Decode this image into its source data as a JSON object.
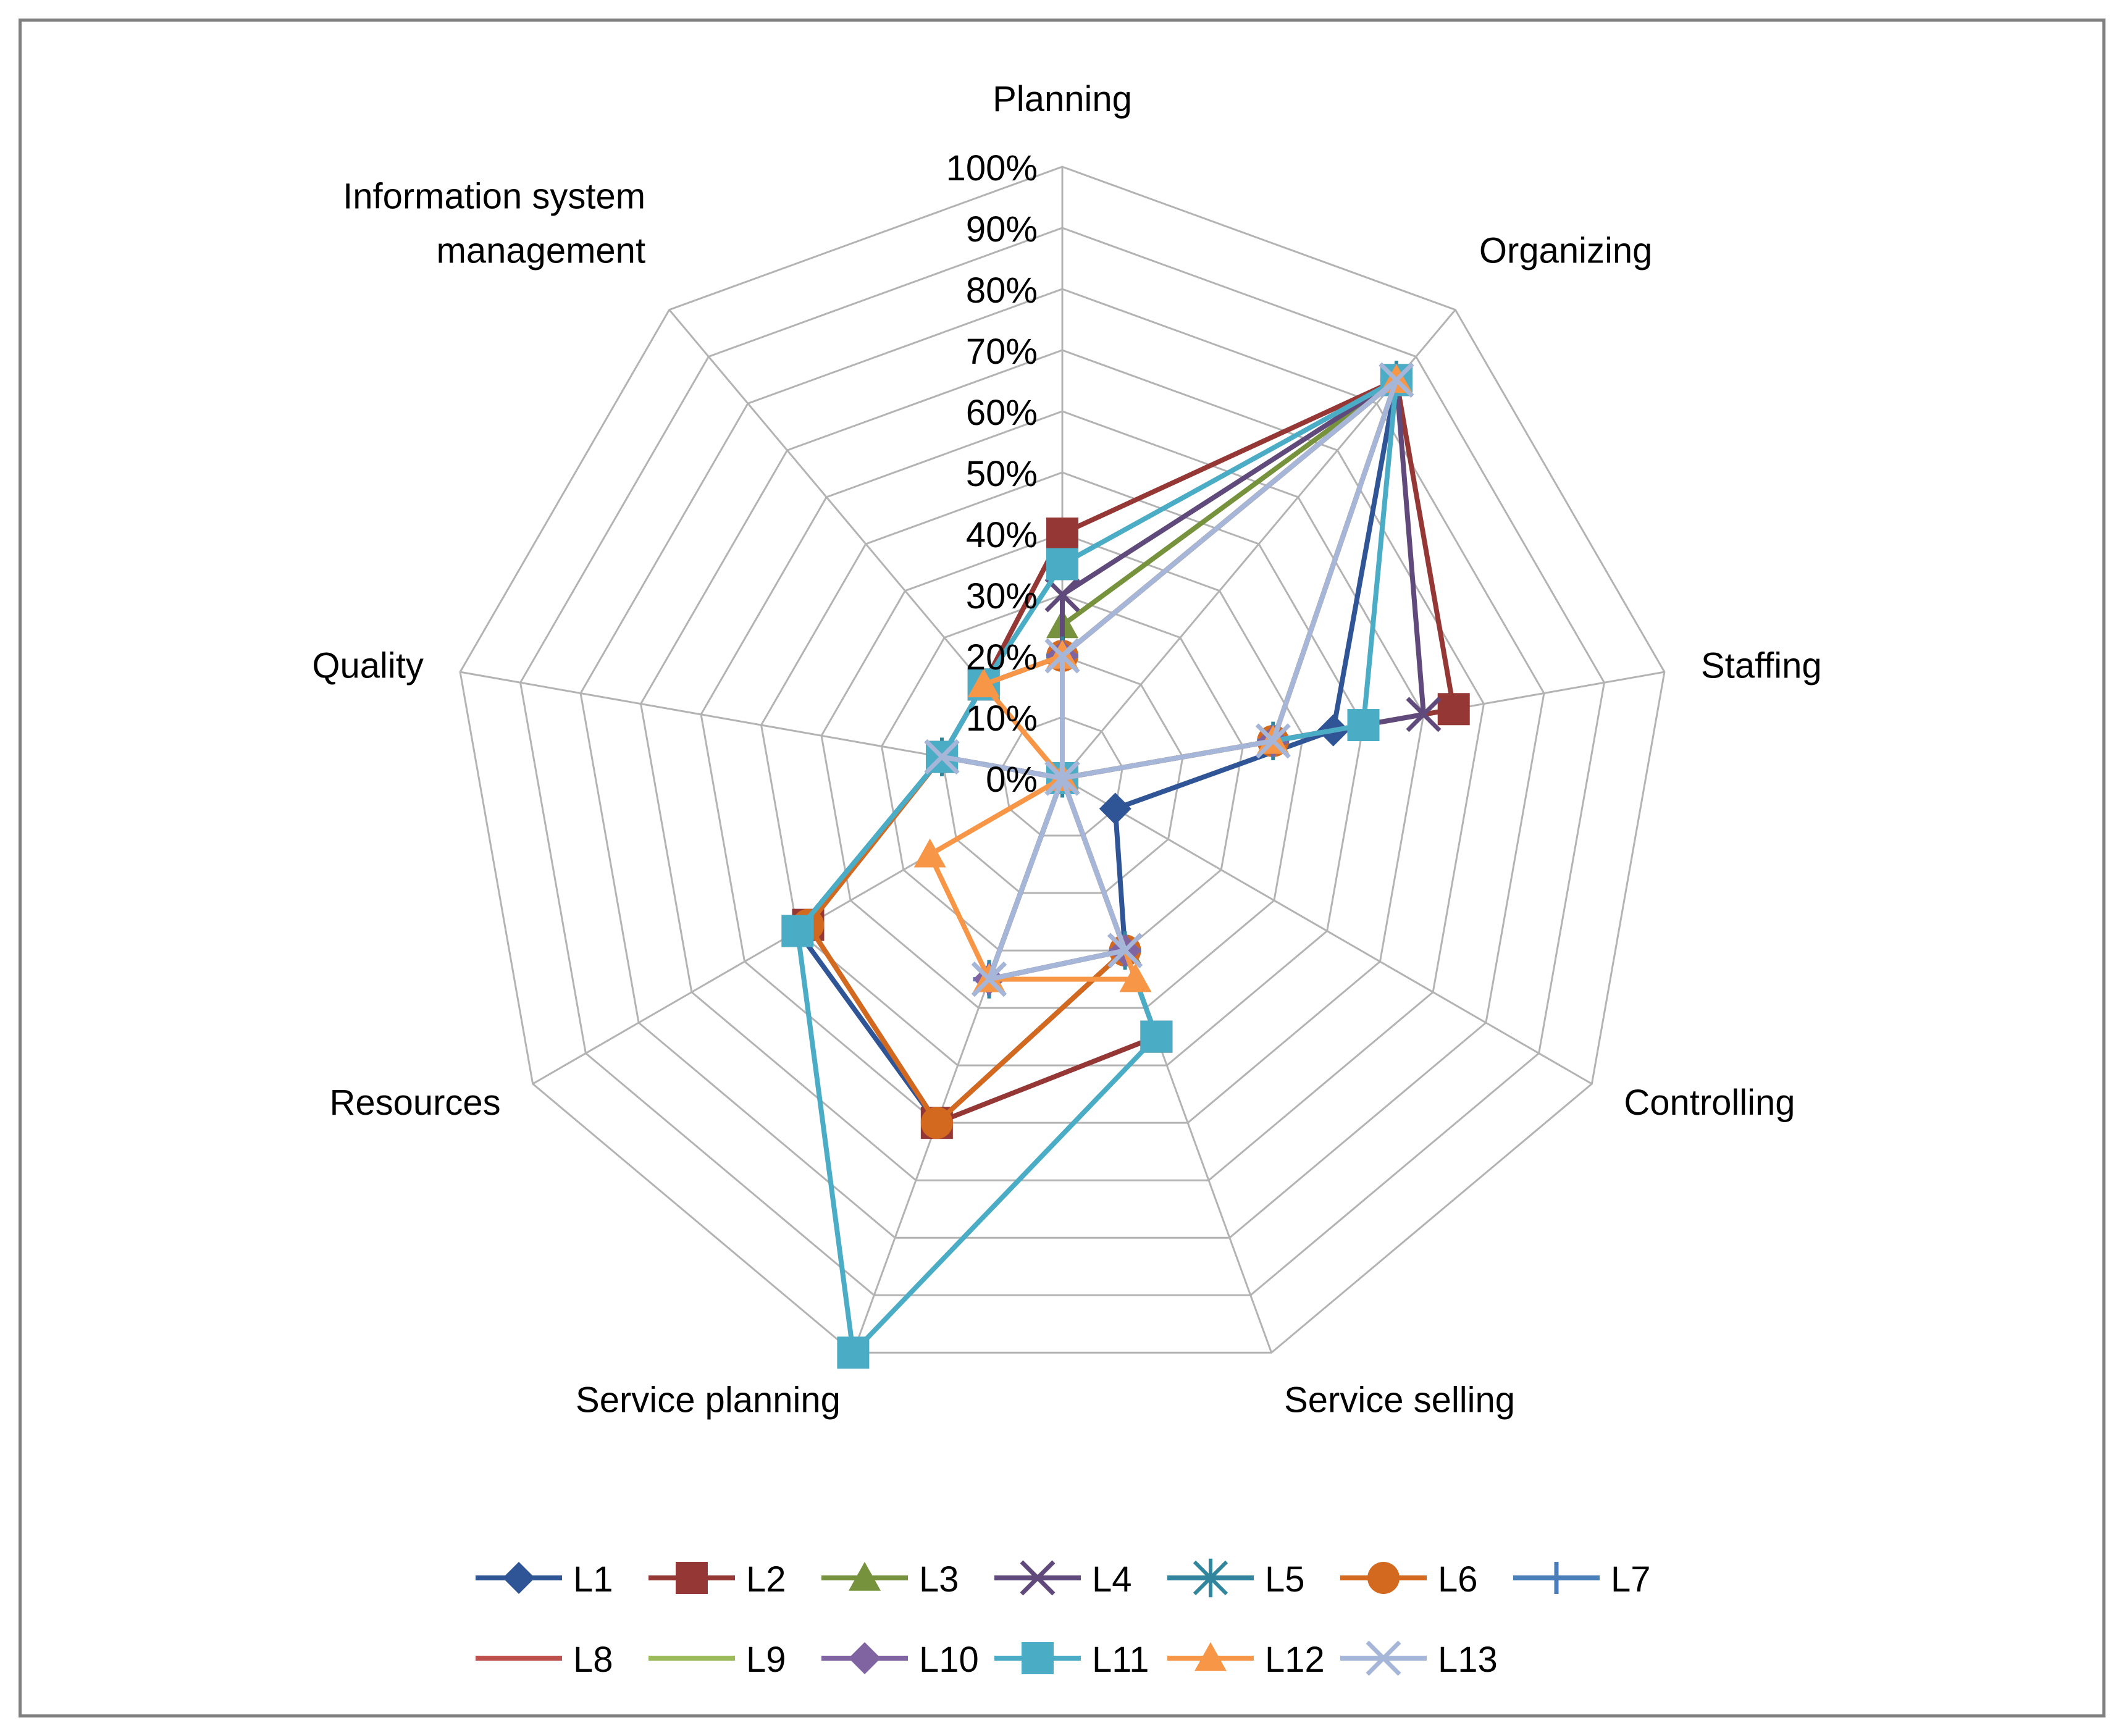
{
  "chart_data": {
    "type": "radar",
    "title": "",
    "axes": [
      "Planning",
      "Organizing",
      "Staffing",
      "Controlling",
      "Service selling",
      "Service planning",
      "Resources",
      "Quality",
      "Information system management"
    ],
    "axis_label_lines": [
      [
        "Planning"
      ],
      [
        "Organizing"
      ],
      [
        "Staffing"
      ],
      [
        "Controlling"
      ],
      [
        "Service selling"
      ],
      [
        "Service planning"
      ],
      [
        "Resources"
      ],
      [
        "Quality"
      ],
      [
        "Information system",
        "management"
      ]
    ],
    "range": [
      0,
      1
    ],
    "tick_labels": [
      "0%",
      "10%",
      "20%",
      "30%",
      "40%",
      "50%",
      "60%",
      "70%",
      "80%",
      "90%",
      "100%"
    ],
    "grid": true,
    "legend_position": "bottom",
    "series": [
      {
        "name": "L1",
        "color": "#2f5597",
        "marker": "diamond",
        "values": [
          0.2,
          0.85,
          0.45,
          0.1,
          0.3,
          0.6,
          0.5,
          0.2,
          0.2
        ]
      },
      {
        "name": "L2",
        "color": "#953735",
        "marker": "square",
        "values": [
          0.4,
          0.85,
          0.65,
          0.0,
          0.45,
          0.6,
          0.48,
          0.2,
          0.2
        ]
      },
      {
        "name": "L3",
        "color": "#76923c",
        "marker": "triangle",
        "values": [
          0.25,
          0.85,
          0.35,
          0.0,
          0.3,
          0.35,
          0.0,
          0.2,
          0.0
        ]
      },
      {
        "name": "L4",
        "color": "#604a7b",
        "marker": "x",
        "values": [
          0.3,
          0.85,
          0.6,
          0.0,
          0.3,
          0.35,
          0.0,
          0.2,
          0.0
        ]
      },
      {
        "name": "L5",
        "color": "#31859c",
        "marker": "star",
        "values": [
          0.2,
          0.85,
          0.35,
          0.0,
          0.3,
          0.35,
          0.0,
          0.2,
          0.0
        ]
      },
      {
        "name": "L6",
        "color": "#d2691e",
        "marker": "circle",
        "values": [
          0.2,
          0.85,
          0.35,
          0.0,
          0.3,
          0.6,
          0.48,
          0.2,
          0.0
        ]
      },
      {
        "name": "L7",
        "color": "#4a7ebb",
        "marker": "plus",
        "values": [
          0.2,
          0.85,
          0.35,
          0.0,
          0.3,
          0.35,
          0.0,
          0.2,
          0.0
        ]
      },
      {
        "name": "L8",
        "color": "#c0504d",
        "marker": "none",
        "values": [
          0.2,
          0.85,
          0.35,
          0.0,
          0.3,
          0.35,
          0.0,
          0.2,
          0.0
        ]
      },
      {
        "name": "L9",
        "color": "#9bbb59",
        "marker": "none",
        "values": [
          0.2,
          0.85,
          0.35,
          0.0,
          0.3,
          0.35,
          0.0,
          0.2,
          0.0
        ]
      },
      {
        "name": "L10",
        "color": "#8064a2",
        "marker": "diamond",
        "values": [
          0.2,
          0.85,
          0.35,
          0.0,
          0.3,
          0.35,
          0.0,
          0.2,
          0.0
        ]
      },
      {
        "name": "L11",
        "color": "#4bacc6",
        "marker": "square",
        "values": [
          0.35,
          0.85,
          0.5,
          0.0,
          0.45,
          1.0,
          0.5,
          0.2,
          0.2
        ]
      },
      {
        "name": "L12",
        "color": "#f79646",
        "marker": "triangle",
        "values": [
          0.2,
          0.85,
          0.35,
          0.0,
          0.35,
          0.35,
          0.25,
          0.0,
          0.2
        ]
      },
      {
        "name": "L13",
        "color": "#a5b6d8",
        "marker": "x",
        "values": [
          0.2,
          0.85,
          0.35,
          0.0,
          0.3,
          0.35,
          0.0,
          0.2,
          0.0
        ]
      }
    ]
  }
}
